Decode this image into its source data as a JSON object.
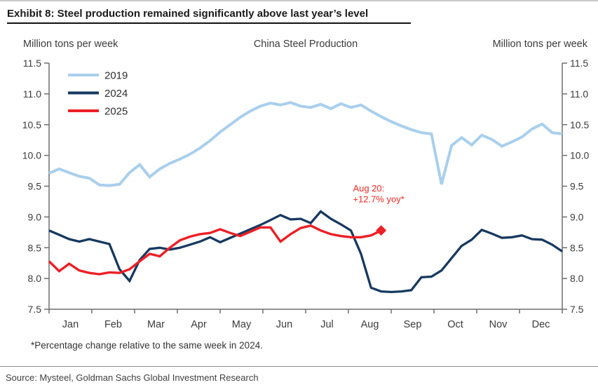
{
  "page": {
    "title": "Exhibit 8: Steel production remained significantly above last year’s level",
    "footnote": "*Percentage change relative to the same week in 2024.",
    "source": "Source: Mysteel, Goldman Sachs Global Investment Research"
  },
  "chart_data": {
    "type": "line",
    "title": "China Steel Production",
    "ylabel_left": "Million tons per week",
    "ylabel_right": "Million tons per week",
    "ylim": [
      7.5,
      11.5
    ],
    "yticks": [
      "7.5",
      "8.0",
      "8.5",
      "9.0",
      "9.5",
      "10.0",
      "10.5",
      "11.0",
      "11.5"
    ],
    "grid": false,
    "legend_position": "top-left",
    "categories": [
      "Jan",
      "Feb",
      "Mar",
      "Apr",
      "May",
      "Jun",
      "Jul",
      "Aug",
      "Sep",
      "Oct",
      "Nov",
      "Dec"
    ],
    "x_unit": "week-of-year",
    "weeks_per_year": 52,
    "axis_color": "#6e6e6e",
    "tick_label_color": "#3b3b3b",
    "series": [
      {
        "name": "2019",
        "color": "#A9CFEC",
        "width": 4,
        "values": [
          9.71,
          9.78,
          9.72,
          9.66,
          9.63,
          9.52,
          9.51,
          9.53,
          9.72,
          9.85,
          9.65,
          9.78,
          9.87,
          9.94,
          10.02,
          10.12,
          10.24,
          10.38,
          10.5,
          10.62,
          10.72,
          10.8,
          10.85,
          10.82,
          10.86,
          10.8,
          10.78,
          10.83,
          10.76,
          10.84,
          10.78,
          10.82,
          10.72,
          10.63,
          10.55,
          10.48,
          10.42,
          10.37,
          10.35,
          9.53,
          10.16,
          10.29,
          10.17,
          10.33,
          10.26,
          10.15,
          10.22,
          10.3,
          10.43,
          10.51,
          10.37,
          10.35
        ]
      },
      {
        "name": "2024",
        "color": "#17395F",
        "width": 3.3,
        "values": [
          8.78,
          8.71,
          8.64,
          8.6,
          8.64,
          8.6,
          8.56,
          8.15,
          7.96,
          8.3,
          8.48,
          8.5,
          8.47,
          8.5,
          8.55,
          8.6,
          8.67,
          8.59,
          8.66,
          8.73,
          8.8,
          8.87,
          8.95,
          9.03,
          8.96,
          8.97,
          8.9,
          9.09,
          8.97,
          8.88,
          8.78,
          8.4,
          7.85,
          7.79,
          7.78,
          7.79,
          7.81,
          8.02,
          8.03,
          8.13,
          8.33,
          8.53,
          8.63,
          8.79,
          8.73,
          8.66,
          8.67,
          8.7,
          8.64,
          8.63,
          8.55,
          8.44
        ]
      },
      {
        "name": "2025",
        "color": "#EC1F26",
        "width": 3.4,
        "end_marker": "diamond",
        "values": [
          8.28,
          8.12,
          8.24,
          8.13,
          8.09,
          8.07,
          8.1,
          8.09,
          8.15,
          8.28,
          8.4,
          8.36,
          8.5,
          8.62,
          8.68,
          8.72,
          8.74,
          8.8,
          8.74,
          8.69,
          8.76,
          8.83,
          8.83,
          8.6,
          8.72,
          8.82,
          8.86,
          8.78,
          8.72,
          8.69,
          8.67,
          8.67,
          8.7,
          8.78
        ]
      }
    ],
    "annotation": {
      "lines": [
        "Aug 20:",
        "+12.7% yoy*"
      ],
      "color": "#EF2A26",
      "x_week": 31.2,
      "y_value": 9.54
    }
  }
}
